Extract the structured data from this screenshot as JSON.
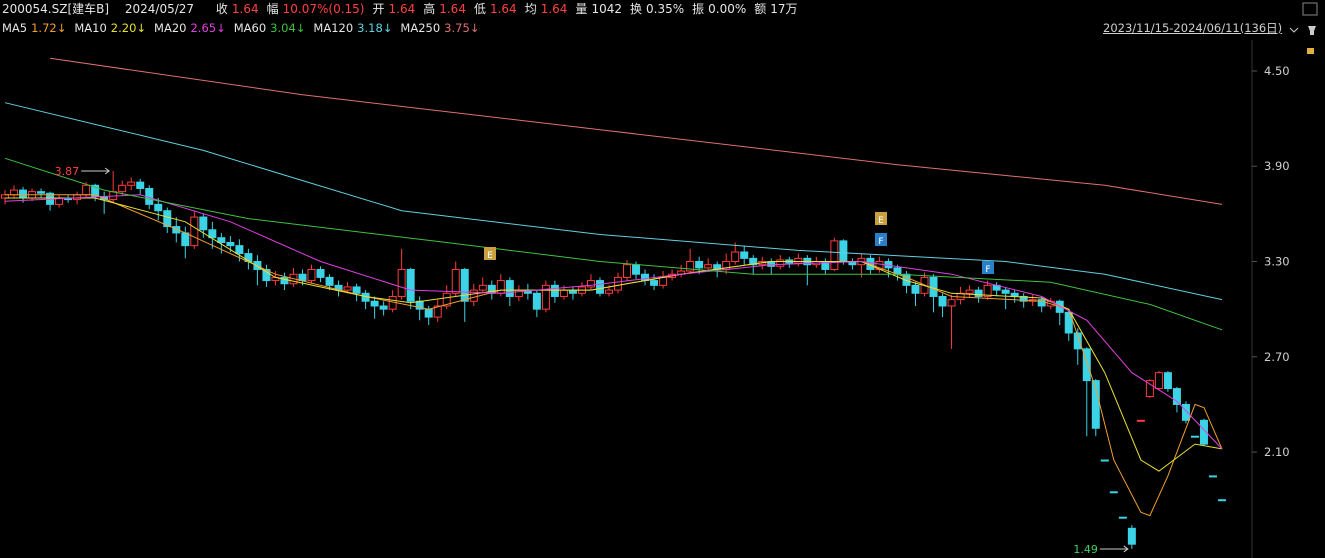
{
  "header": {
    "symbol": "200054.SZ[建车B]",
    "date": "2024/05/27",
    "fields": [
      {
        "label": "收",
        "value": "1.64",
        "color": "#ff4040"
      },
      {
        "label": "幅",
        "value": "10.07%(0.15)",
        "color": "#ff4040"
      },
      {
        "label": "开",
        "value": "1.64",
        "color": "#ff4040"
      },
      {
        "label": "高",
        "value": "1.64",
        "color": "#ff4040"
      },
      {
        "label": "低",
        "value": "1.64",
        "color": "#ff4040"
      },
      {
        "label": "均",
        "value": "1.64",
        "color": "#ff4040"
      },
      {
        "label": "量",
        "value": "1042",
        "color": "#e6e6e6"
      },
      {
        "label": "换",
        "value": "0.35%",
        "color": "#e6e6e6"
      },
      {
        "label": "振",
        "value": "0.00%",
        "color": "#e6e6e6"
      },
      {
        "label": "额",
        "value": "17万",
        "color": "#e6e6e6"
      }
    ],
    "range": "2023/11/15-2024/06/11(136日)"
  },
  "chart_data": {
    "type": "candlestick",
    "up_color": "#ff3b3b",
    "down_color": "#3bd3e6",
    "ylim": [
      1.433,
      4.695
    ],
    "yticks": [
      {
        "value": 4.5,
        "label": "4.50"
      },
      {
        "value": 3.9,
        "label": "3.90"
      },
      {
        "value": 3.3,
        "label": "3.30"
      },
      {
        "value": 2.7,
        "label": "2.70"
      },
      {
        "value": 2.1,
        "label": "2.10"
      }
    ],
    "grid": false,
    "open": [
      3.7,
      3.72,
      3.75,
      3.7,
      3.74,
      3.73,
      3.66,
      3.7,
      3.69,
      3.72,
      3.78,
      3.71,
      3.69,
      3.74,
      3.78,
      3.8,
      3.76,
      3.66,
      3.62,
      3.52,
      3.48,
      3.4,
      3.58,
      3.5,
      3.45,
      3.42,
      3.4,
      3.35,
      3.3,
      3.25,
      3.18,
      3.2,
      3.16,
      3.22,
      3.18,
      3.25,
      3.2,
      3.15,
      3.12,
      3.14,
      3.1,
      3.05,
      3.02,
      3.0,
      3.08,
      3.25,
      3.05,
      3.0,
      2.95,
      3.02,
      3.1,
      3.25,
      3.05,
      3.12,
      3.15,
      3.1,
      3.18,
      3.08,
      3.12,
      3.1,
      3.0,
      3.15,
      3.08,
      3.12,
      3.1,
      3.14,
      3.18,
      3.1,
      3.12,
      3.2,
      3.28,
      3.22,
      3.18,
      3.15,
      3.2,
      3.22,
      3.24,
      3.3,
      3.26,
      3.28,
      3.25,
      3.3,
      3.36,
      3.32,
      3.28,
      3.3,
      3.27,
      3.31,
      3.29,
      3.32,
      3.28,
      3.3,
      3.25,
      3.43,
      3.3,
      3.28,
      3.32,
      3.25,
      3.3,
      3.26,
      3.22,
      3.15,
      3.1,
      3.2,
      3.08,
      3.02,
      3.06,
      3.1,
      3.12,
      3.08,
      3.15,
      3.12,
      3.1,
      3.08,
      3.05,
      3.06,
      3.02,
      3.05,
      2.98,
      2.85,
      2.75,
      2.55,
      2.05,
      1.85,
      1.69,
      1.62,
      2.3,
      2.45,
      2.5,
      2.6,
      2.5,
      2.4,
      2.2,
      2.3,
      1.95,
      1.8
    ],
    "high": [
      3.75,
      3.78,
      3.77,
      3.76,
      3.76,
      3.74,
      3.72,
      3.72,
      3.74,
      3.8,
      3.79,
      3.74,
      3.87,
      3.81,
      3.83,
      3.82,
      3.78,
      3.7,
      3.64,
      3.58,
      3.52,
      3.62,
      3.6,
      3.55,
      3.48,
      3.46,
      3.44,
      3.38,
      3.34,
      3.28,
      3.24,
      3.23,
      3.26,
      3.25,
      3.28,
      3.27,
      3.22,
      3.18,
      3.17,
      3.16,
      3.12,
      3.08,
      3.05,
      3.12,
      3.38,
      3.26,
      3.08,
      3.02,
      3.06,
      3.15,
      3.3,
      3.26,
      3.16,
      3.2,
      3.18,
      3.22,
      3.2,
      3.15,
      3.16,
      3.12,
      3.18,
      3.18,
      3.15,
      3.14,
      3.17,
      3.22,
      3.2,
      3.15,
      3.23,
      3.31,
      3.3,
      3.25,
      3.22,
      3.24,
      3.25,
      3.28,
      3.38,
      3.33,
      3.32,
      3.3,
      3.35,
      3.42,
      3.4,
      3.34,
      3.33,
      3.32,
      3.34,
      3.33,
      3.35,
      3.34,
      3.33,
      3.32,
      3.45,
      3.44,
      3.32,
      3.35,
      3.34,
      3.33,
      3.32,
      3.28,
      3.24,
      3.17,
      3.23,
      3.22,
      3.1,
      3.09,
      3.14,
      3.15,
      3.14,
      3.18,
      3.17,
      3.14,
      3.12,
      3.1,
      3.09,
      3.08,
      3.07,
      3.06,
      3.0,
      2.88,
      2.76,
      2.56,
      2.05,
      1.85,
      1.69,
      1.64,
      2.3,
      2.56,
      2.61,
      2.61,
      2.51,
      2.42,
      2.2,
      2.31,
      1.95,
      1.8
    ],
    "low": [
      3.66,
      3.7,
      3.67,
      3.68,
      3.7,
      3.62,
      3.64,
      3.67,
      3.66,
      3.7,
      3.68,
      3.6,
      3.67,
      3.72,
      3.75,
      3.72,
      3.63,
      3.56,
      3.48,
      3.42,
      3.32,
      3.38,
      3.45,
      3.38,
      3.35,
      3.36,
      3.3,
      3.25,
      3.15,
      3.14,
      3.15,
      3.12,
      3.14,
      3.15,
      3.16,
      3.17,
      3.12,
      3.08,
      3.1,
      3.05,
      3.0,
      2.94,
      2.96,
      2.98,
      3.06,
      3.0,
      2.93,
      2.9,
      2.92,
      3.0,
      3.08,
      2.92,
      3.02,
      3.1,
      3.06,
      3.08,
      3.02,
      3.05,
      3.06,
      2.95,
      2.98,
      3.04,
      3.06,
      3.06,
      3.08,
      3.12,
      3.08,
      3.08,
      3.1,
      3.18,
      3.19,
      3.15,
      3.12,
      3.13,
      3.18,
      3.2,
      3.22,
      3.22,
      3.24,
      3.2,
      3.22,
      3.28,
      3.28,
      3.22,
      3.25,
      3.22,
      3.25,
      3.26,
      3.27,
      3.15,
      3.26,
      3.22,
      3.24,
      3.28,
      3.25,
      3.2,
      3.22,
      3.23,
      3.2,
      3.18,
      3.1,
      3.02,
      3.08,
      2.98,
      2.95,
      2.75,
      3.03,
      3.07,
      3.04,
      3.06,
      3.08,
      3.0,
      3.04,
      3.01,
      3.02,
      2.98,
      3.0,
      2.9,
      2.8,
      2.65,
      2.2,
      2.2,
      2.05,
      1.85,
      1.69,
      1.49,
      2.3,
      2.44,
      2.49,
      2.48,
      2.35,
      2.28,
      2.2,
      2.14,
      1.95,
      1.8
    ],
    "close": [
      3.72,
      3.75,
      3.7,
      3.74,
      3.73,
      3.66,
      3.7,
      3.69,
      3.72,
      3.78,
      3.71,
      3.69,
      3.74,
      3.78,
      3.8,
      3.76,
      3.66,
      3.62,
      3.52,
      3.48,
      3.4,
      3.58,
      3.5,
      3.45,
      3.42,
      3.4,
      3.35,
      3.3,
      3.25,
      3.18,
      3.2,
      3.16,
      3.22,
      3.18,
      3.25,
      3.2,
      3.15,
      3.12,
      3.14,
      3.1,
      3.05,
      3.02,
      3.0,
      3.08,
      3.25,
      3.05,
      3.0,
      2.95,
      3.02,
      3.1,
      3.25,
      3.05,
      3.12,
      3.15,
      3.1,
      3.18,
      3.08,
      3.12,
      3.1,
      3.0,
      3.15,
      3.08,
      3.12,
      3.1,
      3.14,
      3.18,
      3.1,
      3.12,
      3.2,
      3.28,
      3.22,
      3.18,
      3.15,
      3.2,
      3.22,
      3.24,
      3.3,
      3.26,
      3.28,
      3.25,
      3.3,
      3.36,
      3.32,
      3.28,
      3.3,
      3.27,
      3.31,
      3.29,
      3.32,
      3.28,
      3.3,
      3.25,
      3.43,
      3.3,
      3.28,
      3.32,
      3.25,
      3.3,
      3.26,
      3.22,
      3.15,
      3.1,
      3.2,
      3.08,
      3.02,
      3.06,
      3.1,
      3.12,
      3.08,
      3.15,
      3.12,
      3.1,
      3.08,
      3.05,
      3.06,
      3.02,
      3.05,
      2.98,
      2.85,
      2.75,
      2.55,
      2.25,
      2.05,
      1.85,
      1.69,
      1.52,
      2.3,
      2.55,
      2.6,
      2.5,
      2.4,
      2.3,
      2.2,
      2.15,
      1.95,
      1.8
    ],
    "series": [
      {
        "name": "MA5",
        "legend_value": "1.72↓",
        "color": "#f0a030",
        "x": [
          0,
          10,
          20,
          30,
          40,
          47,
          55,
          65,
          75,
          85,
          95,
          100,
          105,
          115,
          118,
          121,
          123,
          126,
          127,
          129,
          132,
          133,
          135
        ],
        "values": [
          3.72,
          3.72,
          3.48,
          3.22,
          3.08,
          3.0,
          3.12,
          3.12,
          3.22,
          3.3,
          3.3,
          3.2,
          3.08,
          3.05,
          3.0,
          2.5,
          2.05,
          1.72,
          1.7,
          1.95,
          2.4,
          2.38,
          2.12
        ]
      },
      {
        "name": "MA10",
        "legend_value": "2.20↓",
        "color": "#e8e030",
        "x": [
          0,
          10,
          20,
          30,
          40,
          45,
          55,
          65,
          75,
          85,
          95,
          100,
          105,
          115,
          118,
          122,
          126,
          128,
          132,
          135
        ],
        "values": [
          3.7,
          3.7,
          3.55,
          3.2,
          3.08,
          3.04,
          3.12,
          3.12,
          3.22,
          3.3,
          3.3,
          3.18,
          3.1,
          3.07,
          3.0,
          2.6,
          2.05,
          1.98,
          2.15,
          2.12
        ]
      },
      {
        "name": "MA20",
        "legend_value": "2.65↓",
        "color": "#e040e0",
        "x": [
          0,
          15,
          25,
          35,
          45,
          55,
          65,
          75,
          85,
          95,
          105,
          115,
          120,
          125,
          130,
          135
        ],
        "values": [
          3.68,
          3.72,
          3.55,
          3.3,
          3.12,
          3.1,
          3.15,
          3.22,
          3.28,
          3.3,
          3.22,
          3.08,
          2.93,
          2.6,
          2.42,
          2.12
        ]
      },
      {
        "name": "MA60",
        "legend_value": "3.04↓",
        "color": "#40c040",
        "x": [
          0,
          11,
          27,
          49,
          66,
          83,
          99,
          116,
          127,
          135
        ],
        "values": [
          3.95,
          3.75,
          3.57,
          3.42,
          3.3,
          3.22,
          3.22,
          3.17,
          3.03,
          2.87
        ]
      },
      {
        "name": "MA120",
        "legend_value": "3.18↓",
        "color": "#60d0e0",
        "x": [
          0,
          22,
          44,
          66,
          88,
          111,
          122,
          135
        ],
        "values": [
          4.3,
          4.0,
          3.62,
          3.47,
          3.37,
          3.3,
          3.22,
          3.06
        ]
      },
      {
        "name": "MA250",
        "legend_value": "3.75↓",
        "color": "#e07070",
        "x": [
          5,
          33,
          66,
          99,
          122,
          135
        ],
        "values": [
          4.58,
          4.35,
          4.13,
          3.91,
          3.78,
          3.66
        ]
      }
    ],
    "extremes": [
      {
        "value": 3.87,
        "label": "3.87",
        "color": "#ff4040"
      },
      {
        "value": 1.49,
        "label": "1.49",
        "color": "#40d060"
      }
    ],
    "markers": [
      "E",
      "E",
      "F",
      "F"
    ]
  }
}
